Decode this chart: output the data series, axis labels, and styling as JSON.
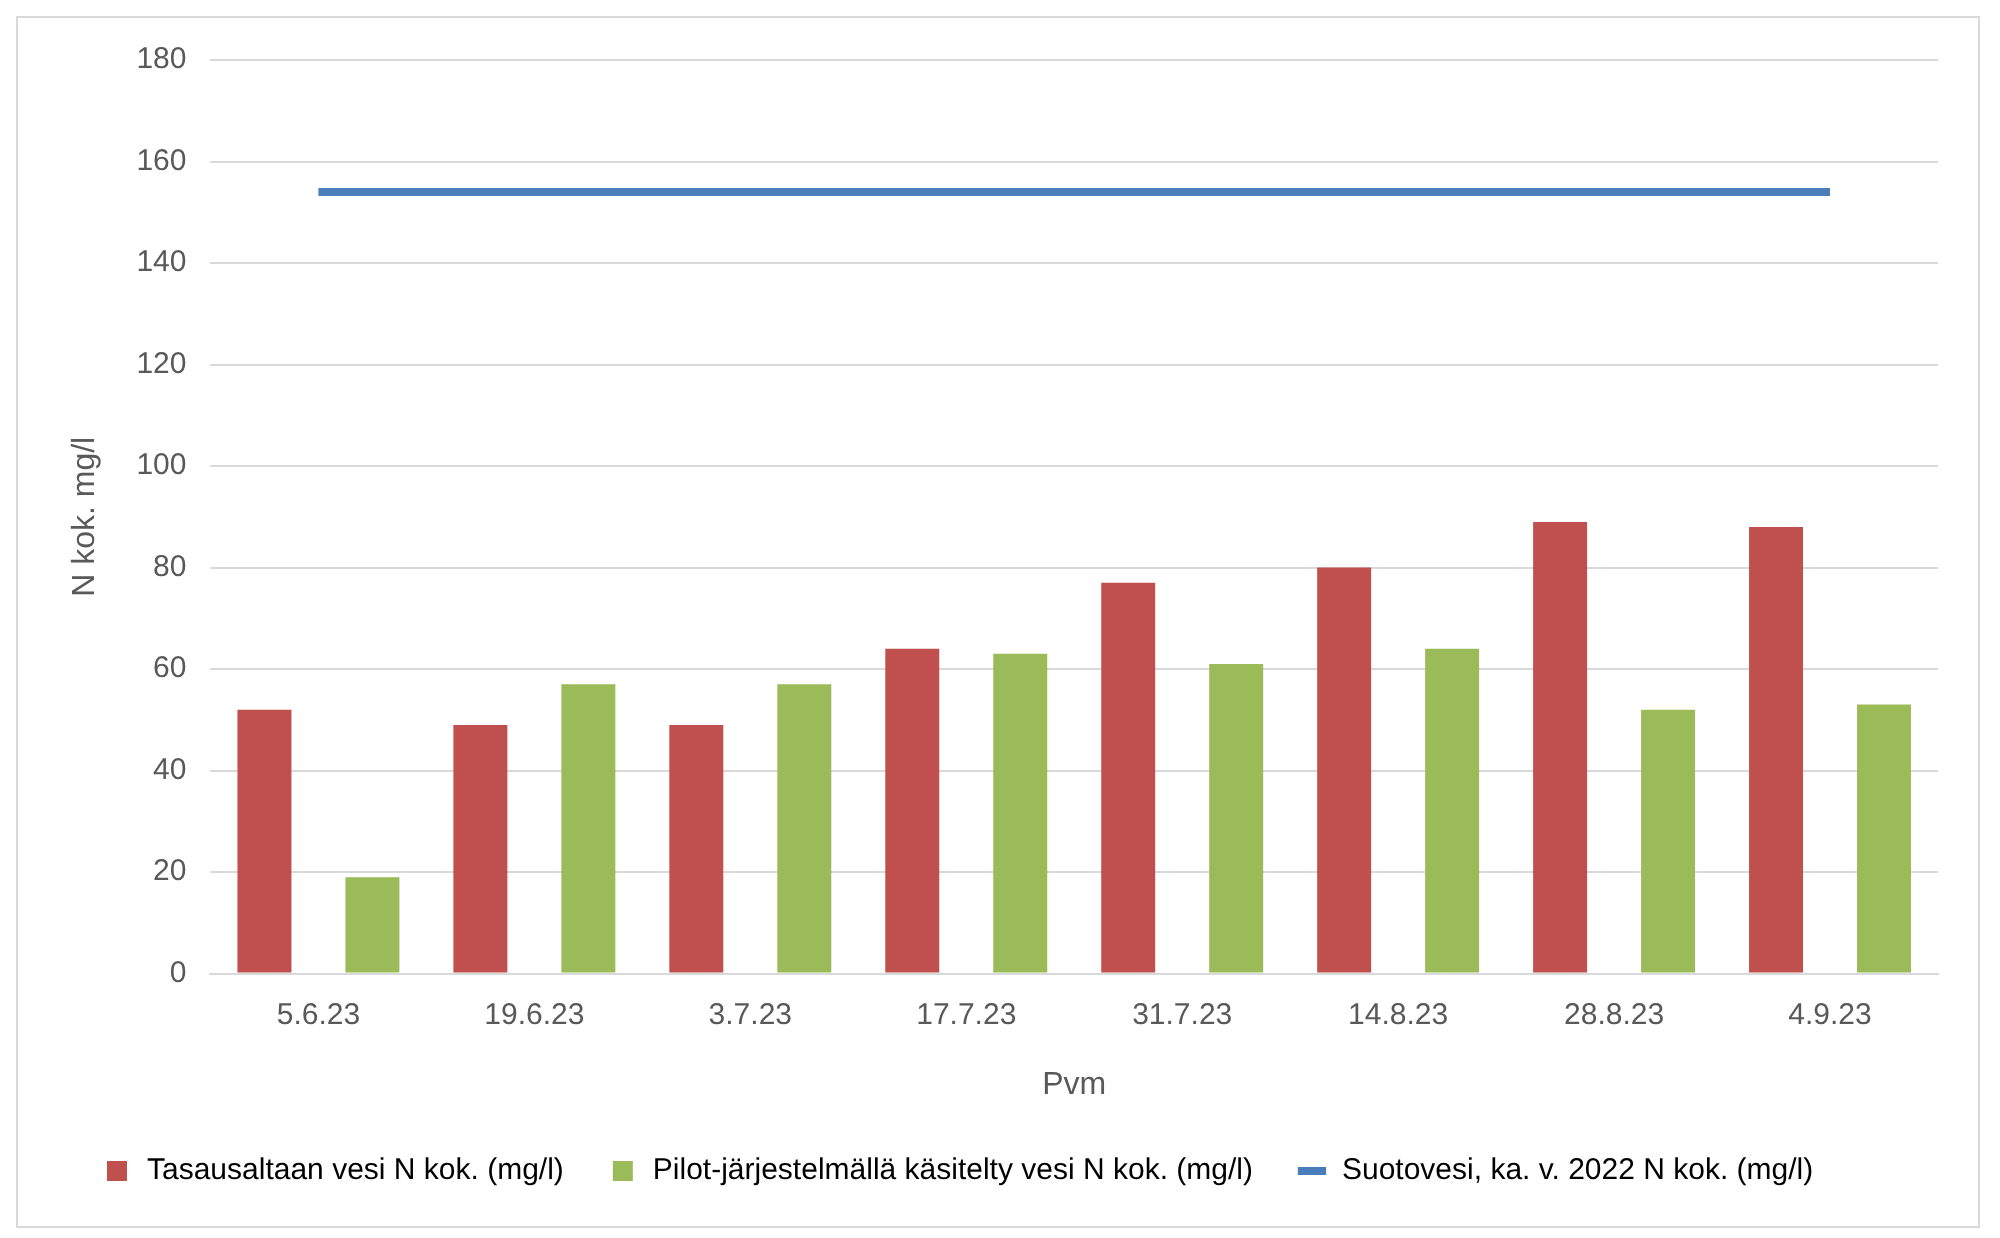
{
  "chart_data": {
    "type": "bar",
    "xlabel": "Pvm",
    "ylabel": "N kok. mg/l",
    "categories": [
      "5.6.23",
      "19.6.23",
      "3.7.23",
      "17.7.23",
      "31.7.23",
      "14.8.23",
      "28.8.23",
      "4.9.23"
    ],
    "series": [
      {
        "name": "Tasausaltaan vesi N kok. (mg/l)",
        "color": "#c0504d",
        "values": [
          52,
          49,
          49,
          64,
          77,
          80,
          89,
          88
        ]
      },
      {
        "name": "Pilot-järjestelmällä käsitelty vesi N kok. (mg/l)",
        "color": "#9bbb59",
        "values": [
          19,
          57,
          57,
          63,
          61,
          64,
          52,
          53
        ]
      },
      {
        "name": "Suotovesi, ka. v. 2022 N kok. (mg/l)",
        "color": "#4a7ebb",
        "type": "line",
        "values": [
          154,
          154,
          154,
          154,
          154,
          154,
          154,
          154
        ]
      }
    ],
    "ylim": [
      0,
      180
    ],
    "yticks": [
      0,
      20,
      40,
      60,
      80,
      100,
      120,
      140,
      160,
      180
    ],
    "grid": "y",
    "legend": "bottom",
    "marker": "none"
  }
}
